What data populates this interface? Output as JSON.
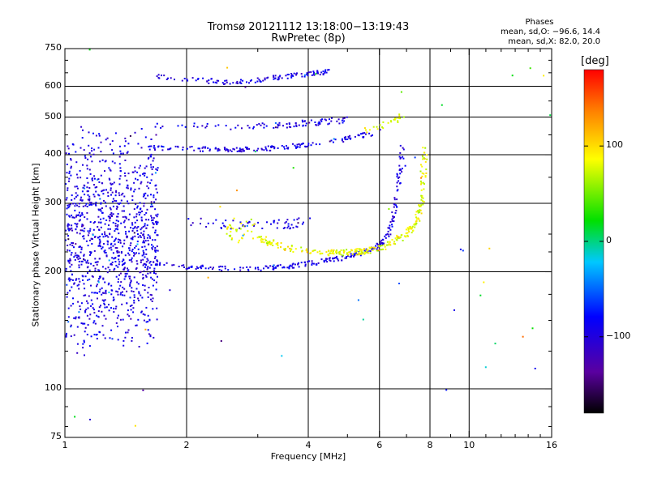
{
  "header": {
    "title_line1": "Tromsø 20121112 13:18:00−13:19:43",
    "title_line2": "RwPretec (8p)"
  },
  "stats": {
    "heading": "Phases",
    "line_o": "mean, sd,O: −96.6, 14.4",
    "line_x": "mean, sd,X: 82.0, 20.0"
  },
  "colorbar": {
    "unit_label": "[deg]",
    "range": [
      -180,
      180
    ],
    "ticks": [
      {
        "value": 100,
        "label": "100"
      },
      {
        "value": 0,
        "label": "0"
      },
      {
        "value": -100,
        "label": "−100"
      }
    ]
  },
  "chart_data": {
    "type": "scatter",
    "xlabel": "Frequency [MHz]",
    "ylabel": "Stationary phase Virtual Height [km]",
    "xscale": "log",
    "yscale": "log",
    "xlim": [
      1,
      16
    ],
    "ylim": [
      75,
      750
    ],
    "xticks": [
      1,
      2,
      4,
      6,
      8,
      10,
      16
    ],
    "xtick_labels": [
      "1",
      "2",
      "4",
      "6",
      "8",
      "10",
      "16"
    ],
    "yticks": [
      75,
      100,
      200,
      300,
      400,
      500,
      600,
      750
    ],
    "ytick_labels": [
      "75",
      "100",
      "200",
      "300",
      "400",
      "500",
      "600",
      "750"
    ],
    "grid": true,
    "color_scale": "phase_deg",
    "series": [
      {
        "color_phase": -96,
        "traces": [
          {
            "kind": "curve",
            "x": [
              1.65,
              2.0,
              2.5,
              3.0,
              3.5,
              4.0,
              4.5
            ],
            "y": [
              640,
              625,
              615,
              622,
              635,
              645,
              655
            ],
            "spread": 0.006,
            "count": 120
          },
          {
            "kind": "curve",
            "x": [
              1.6,
              2.0,
              2.5,
              3.0,
              3.5,
              4.0,
              5.0,
              5.8
            ],
            "y": [
              418,
              415,
              412,
              413,
              418,
              425,
              440,
              455
            ],
            "spread": 0.006,
            "count": 160
          },
          {
            "kind": "curve",
            "x": [
              1.65,
              2.0,
              2.5,
              3.0,
              3.5,
              4.0,
              4.5,
              5.0
            ],
            "y": [
              478,
              475,
              473,
              475,
              478,
              482,
              488,
              492
            ],
            "spread": 0.008,
            "count": 90
          },
          {
            "kind": "curve",
            "x": [
              1.6,
              2.0,
              2.5,
              3.0,
              3.5,
              4.0,
              4.5,
              5.0,
              5.5,
              6.0,
              6.3,
              6.5,
              6.7,
              6.85
            ],
            "y": [
              212,
              206,
              204,
              204,
              206,
              210,
              214,
              218,
              224,
              234,
              250,
              280,
              340,
              420
            ],
            "spread": 0.006,
            "count": 260
          },
          {
            "kind": "curve",
            "x": [
              2.0,
              2.5,
              3.0,
              3.5,
              4.0
            ],
            "y": [
              268,
              265,
              263,
              265,
              268
            ],
            "spread": 0.012,
            "count": 60
          },
          {
            "kind": "cloud",
            "xrange": [
              1.0,
              1.7
            ],
            "yrange": [
              120,
              480
            ],
            "count": 1100
          }
        ]
      },
      {
        "color_phase": 82,
        "traces": [
          {
            "kind": "curve",
            "x": [
              3.0,
              3.5,
              4.0,
              4.5,
              5.0,
              5.5,
              6.0,
              6.5,
              7.0,
              7.4,
              7.6,
              7.7,
              7.75
            ],
            "y": [
              245,
              230,
              226,
              224,
              224,
              226,
              230,
              238,
              250,
              268,
              300,
              360,
              420
            ],
            "spread": 0.008,
            "count": 280
          },
          {
            "kind": "curve",
            "x": [
              5.5,
              6.0,
              6.5,
              6.8
            ],
            "y": [
              460,
              470,
              490,
              500
            ],
            "spread": 0.008,
            "count": 25
          },
          {
            "kind": "cloud",
            "xrange": [
              2.5,
              3.0
            ],
            "yrange": [
              235,
              280
            ],
            "count": 35
          }
        ]
      }
    ]
  }
}
